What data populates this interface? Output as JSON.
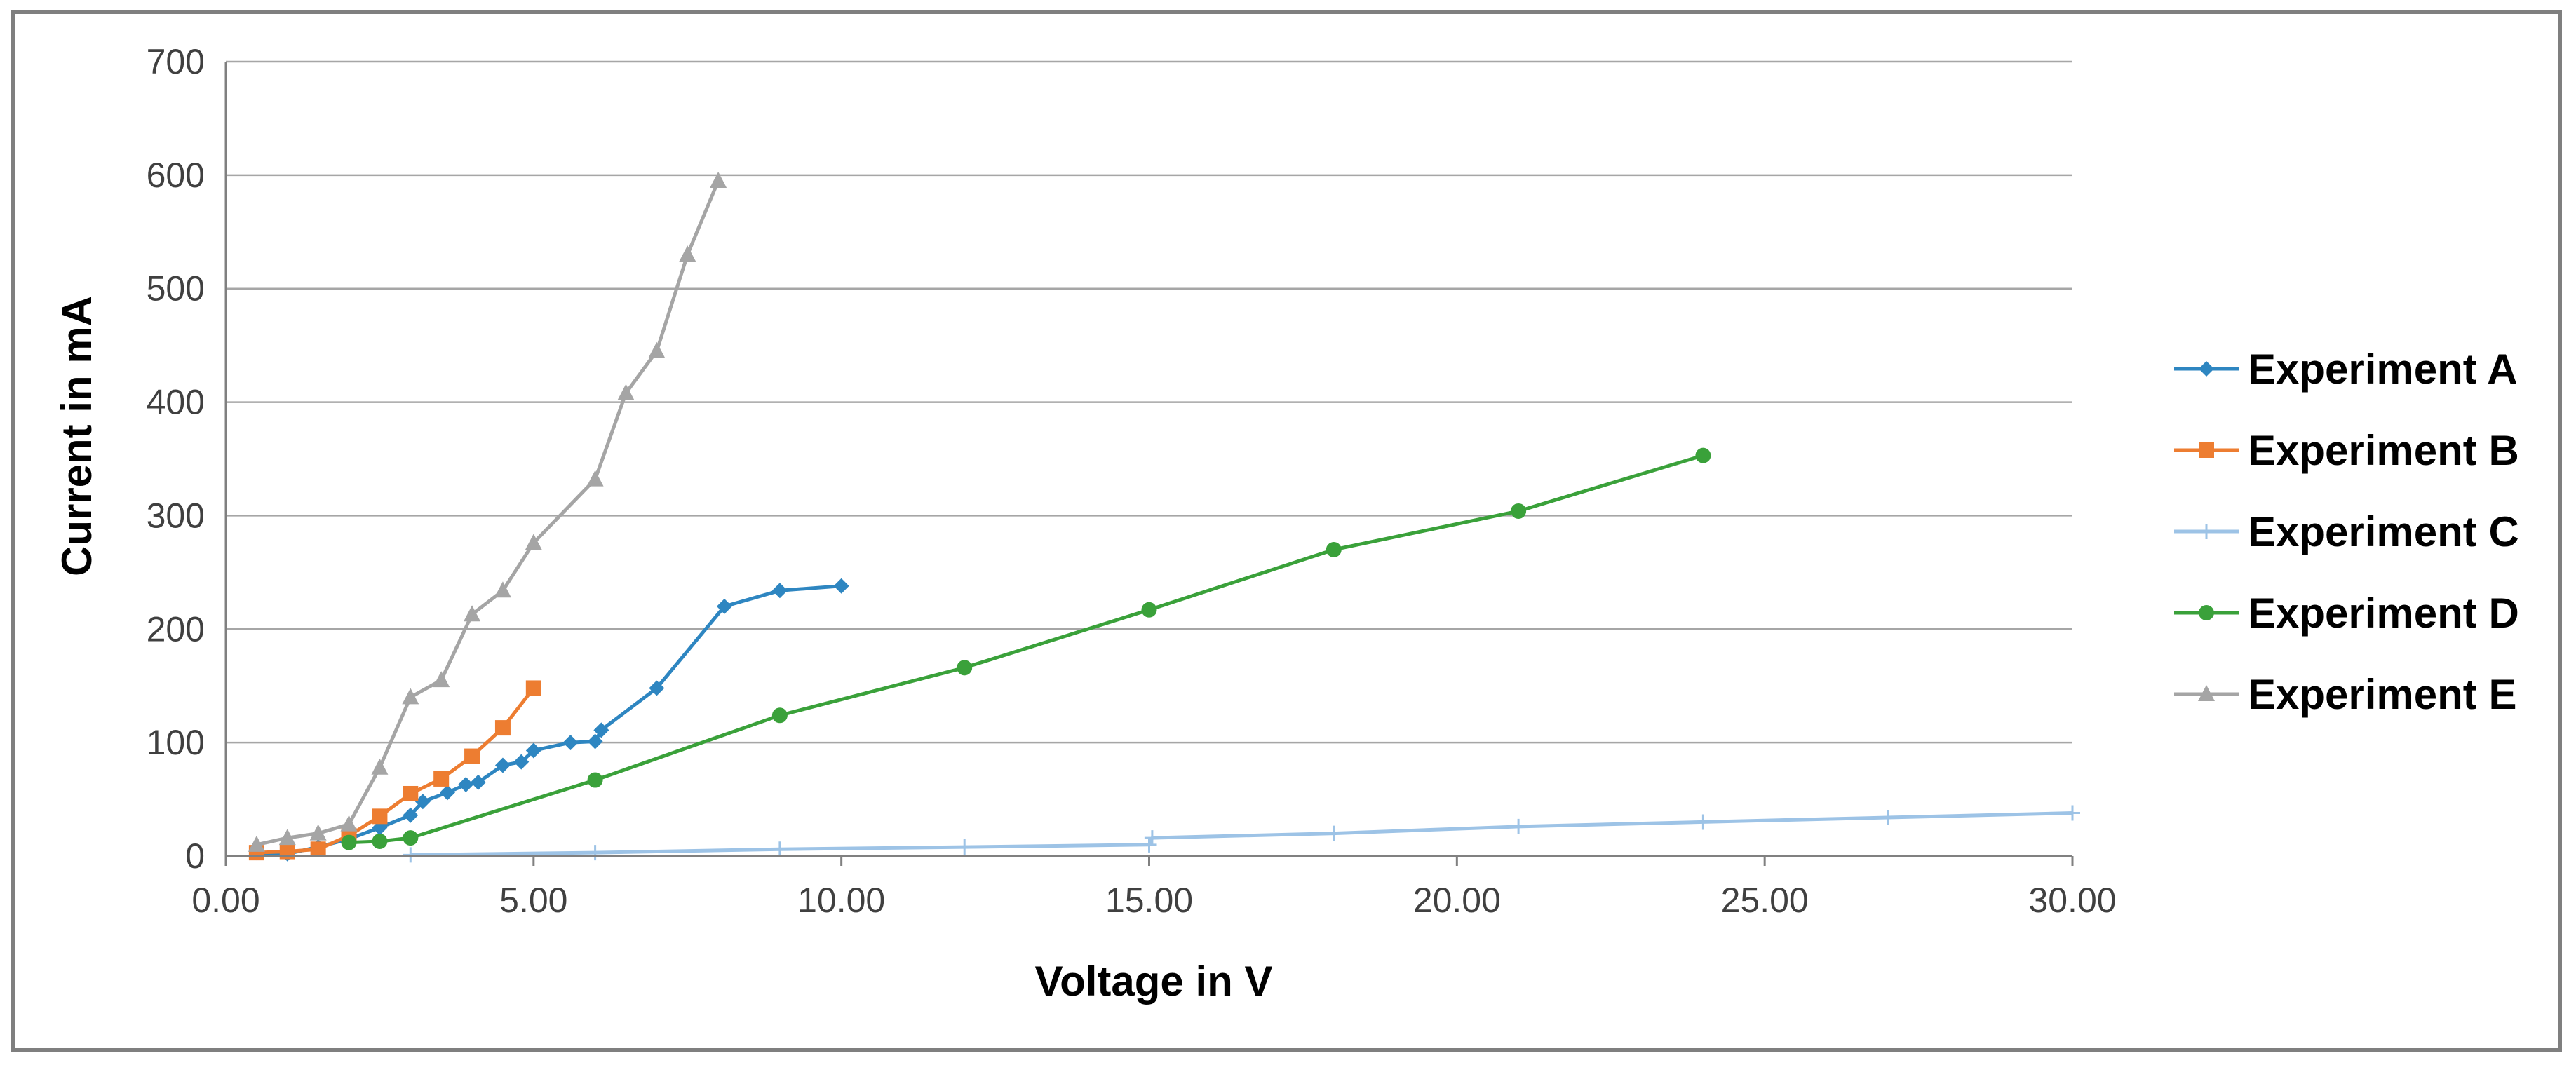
{
  "chart_data": {
    "type": "line",
    "title": "",
    "xlabel": "Voltage in V",
    "ylabel": "Current  in mA",
    "xlim": [
      0,
      30
    ],
    "ylim": [
      0,
      700
    ],
    "x_ticks": [
      "0.00",
      "5.00",
      "10.00",
      "15.00",
      "20.00",
      "25.00",
      "30.00"
    ],
    "y_ticks": [
      "0",
      "100",
      "200",
      "300",
      "400",
      "500",
      "600",
      "700"
    ],
    "grid": "horizontal",
    "legend_position": "right",
    "series": [
      {
        "name": "Experiment A",
        "color": "#2e86c1",
        "marker": "diamond",
        "points": [
          [
            0.5,
            3
          ],
          [
            1.0,
            2
          ],
          [
            1.5,
            8
          ],
          [
            2.0,
            15
          ],
          [
            2.5,
            25
          ],
          [
            3.0,
            36
          ],
          [
            3.2,
            48
          ],
          [
            3.6,
            56
          ],
          [
            3.9,
            63
          ],
          [
            4.1,
            65
          ],
          [
            4.5,
            80
          ],
          [
            4.8,
            83
          ],
          [
            5.0,
            93
          ],
          [
            5.6,
            100
          ],
          [
            6.0,
            101
          ],
          [
            6.1,
            111
          ],
          [
            7.0,
            148
          ],
          [
            8.1,
            220
          ],
          [
            9.0,
            234
          ],
          [
            10.0,
            238
          ]
        ]
      },
      {
        "name": "Experiment B",
        "color": "#ed7d31",
        "marker": "square",
        "points": [
          [
            0.5,
            3
          ],
          [
            1.0,
            4
          ],
          [
            1.5,
            6
          ],
          [
            2.0,
            18
          ],
          [
            2.5,
            35
          ],
          [
            3.0,
            55
          ],
          [
            3.5,
            68
          ],
          [
            4.0,
            88
          ],
          [
            4.5,
            113
          ],
          [
            5.0,
            148
          ]
        ]
      },
      {
        "name": "Experiment C",
        "color": "#9dc3e6",
        "marker": "plus",
        "points": [
          [
            3,
            1
          ],
          [
            6,
            3
          ],
          [
            9,
            6
          ],
          [
            12,
            8
          ],
          [
            15,
            10
          ],
          [
            15.05,
            16
          ],
          [
            18,
            20
          ],
          [
            21,
            26
          ],
          [
            24,
            30
          ],
          [
            27,
            34
          ],
          [
            30,
            38
          ]
        ]
      },
      {
        "name": "Experiment D",
        "color": "#3aa13a",
        "marker": "circle",
        "points": [
          [
            2,
            12
          ],
          [
            2.5,
            13
          ],
          [
            3,
            16
          ],
          [
            6,
            67
          ],
          [
            9,
            124
          ],
          [
            12,
            166
          ],
          [
            15,
            217
          ],
          [
            18,
            270
          ],
          [
            21,
            304
          ],
          [
            24,
            353
          ]
        ]
      },
      {
        "name": "Experiment E",
        "color": "#a5a5a5",
        "marker": "triangle",
        "points": [
          [
            0.5,
            10
          ],
          [
            1.0,
            16
          ],
          [
            1.5,
            20
          ],
          [
            2.0,
            28
          ],
          [
            2.5,
            78
          ],
          [
            3.0,
            140
          ],
          [
            3.5,
            155
          ],
          [
            4.0,
            213
          ],
          [
            4.5,
            234
          ],
          [
            5.0,
            276
          ],
          [
            6.0,
            332
          ],
          [
            6.5,
            408
          ],
          [
            7.0,
            445
          ],
          [
            7.5,
            530
          ],
          [
            8.0,
            595
          ]
        ]
      }
    ]
  }
}
